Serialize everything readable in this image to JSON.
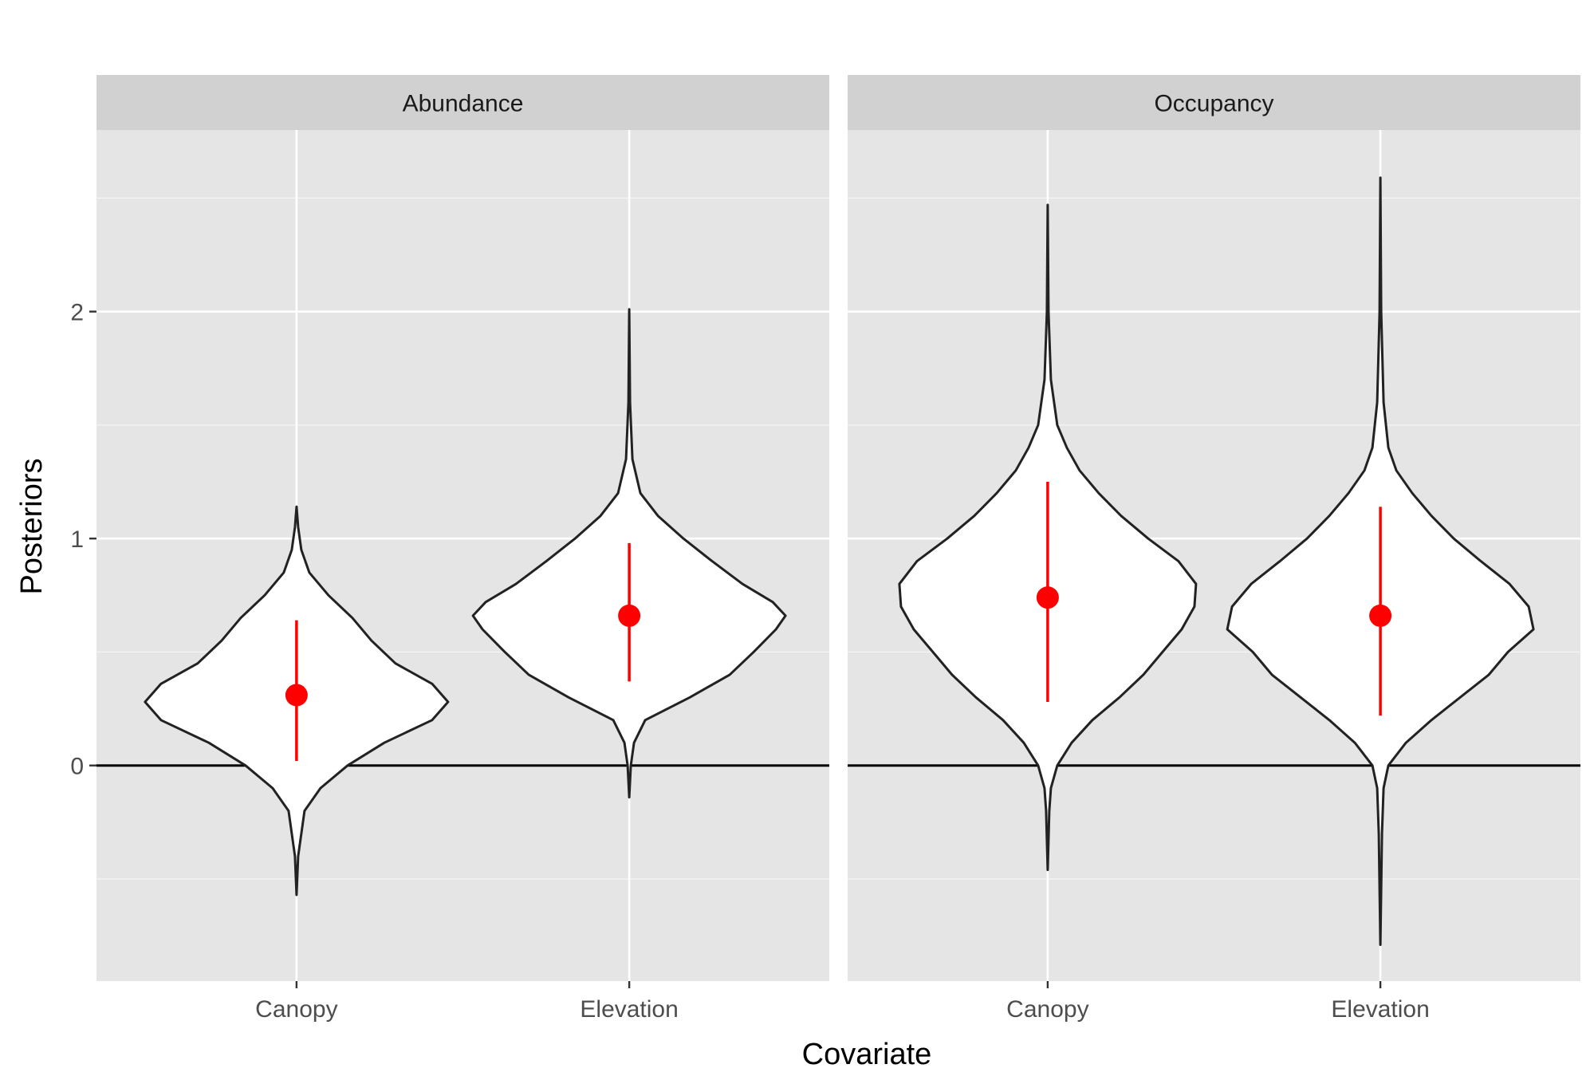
{
  "chart_data": {
    "type": "violin",
    "xlabel": "Covariate",
    "ylabel": "Posteriors",
    "ylim": [
      -0.95,
      2.8
    ],
    "yticks": [
      0,
      1,
      2
    ],
    "y_minor_gridlines": [
      -0.5,
      0.5,
      1.5,
      2.5
    ],
    "reference_line_y": 0,
    "grid": true,
    "legend": "none",
    "colors": {
      "panel_bg": "#e5e5e5",
      "strip_bg": "#d1d1d1",
      "violin_fill": "#ffffff",
      "violin_outline": "#222222",
      "point_interval": "#ff0000",
      "reference_line": "#000000"
    },
    "categories": [
      "Canopy",
      "Elevation"
    ],
    "panels": [
      {
        "strip": "Abundance",
        "groups": [
          {
            "category": "Canopy",
            "point": 0.31,
            "lower": 0.02,
            "upper": 0.64,
            "density": [
              [
                -0.57,
                0.0
              ],
              [
                -0.4,
                0.01
              ],
              [
                -0.2,
                0.05
              ],
              [
                -0.1,
                0.15
              ],
              [
                0.0,
                0.32
              ],
              [
                0.1,
                0.55
              ],
              [
                0.2,
                0.85
              ],
              [
                0.28,
                0.95
              ],
              [
                0.36,
                0.85
              ],
              [
                0.45,
                0.62
              ],
              [
                0.55,
                0.47
              ],
              [
                0.65,
                0.35
              ],
              [
                0.75,
                0.2
              ],
              [
                0.85,
                0.08
              ],
              [
                0.95,
                0.03
              ],
              [
                1.05,
                0.01
              ],
              [
                1.14,
                0.0
              ]
            ]
          },
          {
            "category": "Elevation",
            "point": 0.66,
            "lower": 0.37,
            "upper": 0.98,
            "density": [
              [
                -0.14,
                0.0
              ],
              [
                0.0,
                0.01
              ],
              [
                0.1,
                0.03
              ],
              [
                0.2,
                0.1
              ],
              [
                0.3,
                0.38
              ],
              [
                0.4,
                0.63
              ],
              [
                0.5,
                0.78
              ],
              [
                0.6,
                0.92
              ],
              [
                0.66,
                0.98
              ],
              [
                0.72,
                0.9
              ],
              [
                0.8,
                0.71
              ],
              [
                0.9,
                0.52
              ],
              [
                1.0,
                0.34
              ],
              [
                1.1,
                0.18
              ],
              [
                1.2,
                0.07
              ],
              [
                1.35,
                0.02
              ],
              [
                1.6,
                0.005
              ],
              [
                2.01,
                0.0
              ]
            ]
          }
        ]
      },
      {
        "strip": "Occupancy",
        "groups": [
          {
            "category": "Canopy",
            "point": 0.74,
            "lower": 0.28,
            "upper": 1.25,
            "density": [
              [
                -0.46,
                0.0
              ],
              [
                -0.2,
                0.01
              ],
              [
                -0.1,
                0.02
              ],
              [
                0.0,
                0.06
              ],
              [
                0.1,
                0.15
              ],
              [
                0.2,
                0.28
              ],
              [
                0.3,
                0.45
              ],
              [
                0.4,
                0.6
              ],
              [
                0.5,
                0.72
              ],
              [
                0.6,
                0.84
              ],
              [
                0.7,
                0.92
              ],
              [
                0.8,
                0.93
              ],
              [
                0.9,
                0.82
              ],
              [
                1.0,
                0.63
              ],
              [
                1.1,
                0.46
              ],
              [
                1.2,
                0.32
              ],
              [
                1.3,
                0.2
              ],
              [
                1.4,
                0.12
              ],
              [
                1.5,
                0.06
              ],
              [
                1.7,
                0.02
              ],
              [
                2.0,
                0.005
              ],
              [
                2.47,
                0.0
              ]
            ]
          },
          {
            "category": "Elevation",
            "point": 0.66,
            "lower": 0.22,
            "upper": 1.14,
            "density": [
              [
                -0.79,
                0.0
              ],
              [
                -0.3,
                0.01
              ],
              [
                -0.1,
                0.02
              ],
              [
                0.0,
                0.05
              ],
              [
                0.1,
                0.16
              ],
              [
                0.2,
                0.32
              ],
              [
                0.3,
                0.5
              ],
              [
                0.4,
                0.68
              ],
              [
                0.5,
                0.8
              ],
              [
                0.6,
                0.96
              ],
              [
                0.7,
                0.93
              ],
              [
                0.8,
                0.81
              ],
              [
                0.9,
                0.63
              ],
              [
                1.0,
                0.46
              ],
              [
                1.1,
                0.32
              ],
              [
                1.2,
                0.2
              ],
              [
                1.3,
                0.1
              ],
              [
                1.4,
                0.05
              ],
              [
                1.6,
                0.02
              ],
              [
                2.0,
                0.005
              ],
              [
                2.59,
                0.0
              ]
            ]
          }
        ]
      }
    ]
  }
}
